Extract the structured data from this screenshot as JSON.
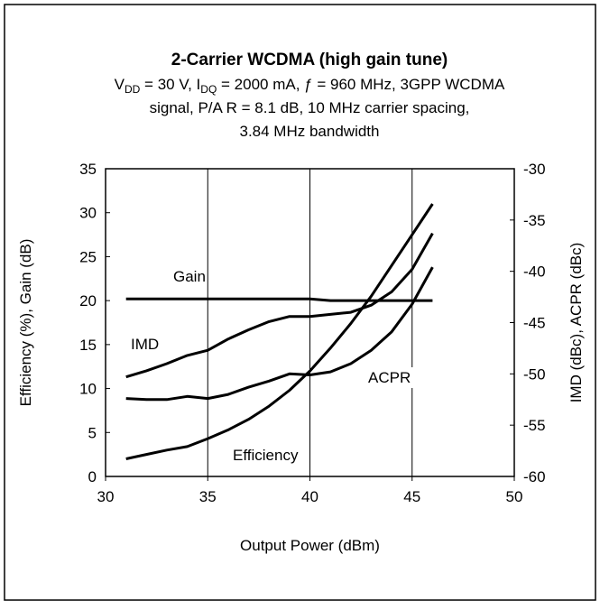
{
  "chart_data": {
    "type": "line",
    "title": "2-Carrier WCDMA (high gain tune)",
    "subtitle_lines": [
      [
        {
          "text": "V"
        },
        {
          "text": "DD",
          "sub": true
        },
        {
          "text": " = 30 V,  I"
        },
        {
          "text": "DQ",
          "sub": true
        },
        {
          "text": " = 2000 mA, ƒ = 960 MHz, 3GPP WCDMA"
        }
      ],
      [
        {
          "text": "signal, P/A R = 8.1 dB, 10 MHz carrier spacing,"
        }
      ],
      [
        {
          "text": "3.84 MHz bandwidth"
        }
      ]
    ],
    "x_label": "Output Power (dBm)",
    "y_label": "Efficiency (%), Gain (dB)",
    "y2_label": "IMD (dBc), ACPR (dBc)",
    "x": [
      31,
      32,
      33,
      34,
      35,
      36,
      37,
      38,
      39,
      40,
      41,
      42,
      43,
      44,
      45,
      46
    ],
    "series": [
      {
        "name": "Gain",
        "color": "#000000",
        "values": [
          20.2,
          20.2,
          20.2,
          20.2,
          20.2,
          20.2,
          20.2,
          20.2,
          20.2,
          20.2,
          20.0,
          20.0,
          20.0,
          20.0,
          20.0,
          20.0
        ]
      },
      {
        "name": "IMD",
        "color": "#000000",
        "axis": "y2",
        "values": [
          -50.3,
          -49.7,
          -49.0,
          -48.2,
          -47.7,
          -46.6,
          -45.7,
          -44.9,
          -44.4,
          -44.4,
          -44.2,
          -44.0,
          -43.3,
          -42.0,
          -39.8,
          -36.3
        ]
      },
      {
        "name": "ACPR",
        "color": "#000000",
        "axis": "y2",
        "values": [
          -52.4,
          -52.5,
          -52.5,
          -52.2,
          -52.4,
          -52.0,
          -51.3,
          -50.7,
          -50.0,
          -50.1,
          -49.8,
          -49.0,
          -47.7,
          -45.9,
          -43.2,
          -39.6
        ]
      },
      {
        "name": "Efficiency",
        "color": "#000000",
        "values": [
          2,
          2.5,
          3,
          3.4,
          4.3,
          5.3,
          6.5,
          8,
          9.8,
          12,
          14.6,
          17.4,
          20.5,
          24,
          27.5,
          31
        ]
      }
    ],
    "xlim": [
      30,
      50
    ],
    "xticks": [
      30,
      35,
      40,
      45,
      50
    ],
    "ylim": [
      0,
      35
    ],
    "yticks": [
      0,
      5,
      10,
      15,
      20,
      25,
      30,
      35
    ],
    "y2lim": [
      -60,
      -30
    ],
    "y2ticks": [
      -60,
      -55,
      -50,
      -45,
      -40,
      -35,
      -30
    ],
    "grid": "x"
  }
}
